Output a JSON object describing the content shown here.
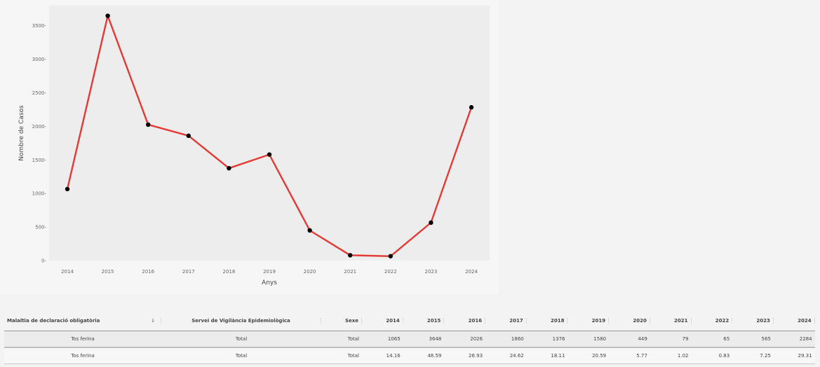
{
  "chart_data": {
    "type": "line",
    "x": [
      "2014",
      "2015",
      "2016",
      "2017",
      "2018",
      "2019",
      "2020",
      "2021",
      "2022",
      "2023",
      "2024"
    ],
    "series": [
      {
        "values": [
          1065,
          3648,
          2026,
          1860,
          1376,
          1580,
          449,
          79,
          65,
          565,
          2284
        ],
        "color": "#e53935"
      }
    ],
    "title": "",
    "xlabel": "Anys",
    "ylabel": "Nombre de Casos",
    "yticks": [
      "0-",
      "500-",
      "1000-",
      "1500-",
      "2000-",
      "2500-",
      "3000-",
      "3500-"
    ],
    "ylim": [
      0,
      3800
    ],
    "grid": false,
    "marker_color": "#000000",
    "plot_background": "#ededed"
  },
  "table": {
    "sort_icon": "sort-down-icon",
    "headers": [
      "Malaltia de declaració obligatòria",
      "Servei de Vigilància Epidemiològica",
      "Sexe",
      "2014",
      "2015",
      "2016",
      "2017",
      "2018",
      "2019",
      "2020",
      "2021",
      "2022",
      "2023",
      "2024"
    ],
    "rows": [
      [
        "Tos ferina",
        "Total",
        "Total",
        "1065",
        "3648",
        "2026",
        "1860",
        "1376",
        "1580",
        "449",
        "79",
        "65",
        "565",
        "2284"
      ],
      [
        "Tos ferina",
        "Total",
        "Total",
        "14.16",
        "48.59",
        "26.93",
        "24.62",
        "18.11",
        "20.59",
        "5.77",
        "1.02",
        "0.83",
        "7.25",
        "29.31"
      ]
    ]
  }
}
